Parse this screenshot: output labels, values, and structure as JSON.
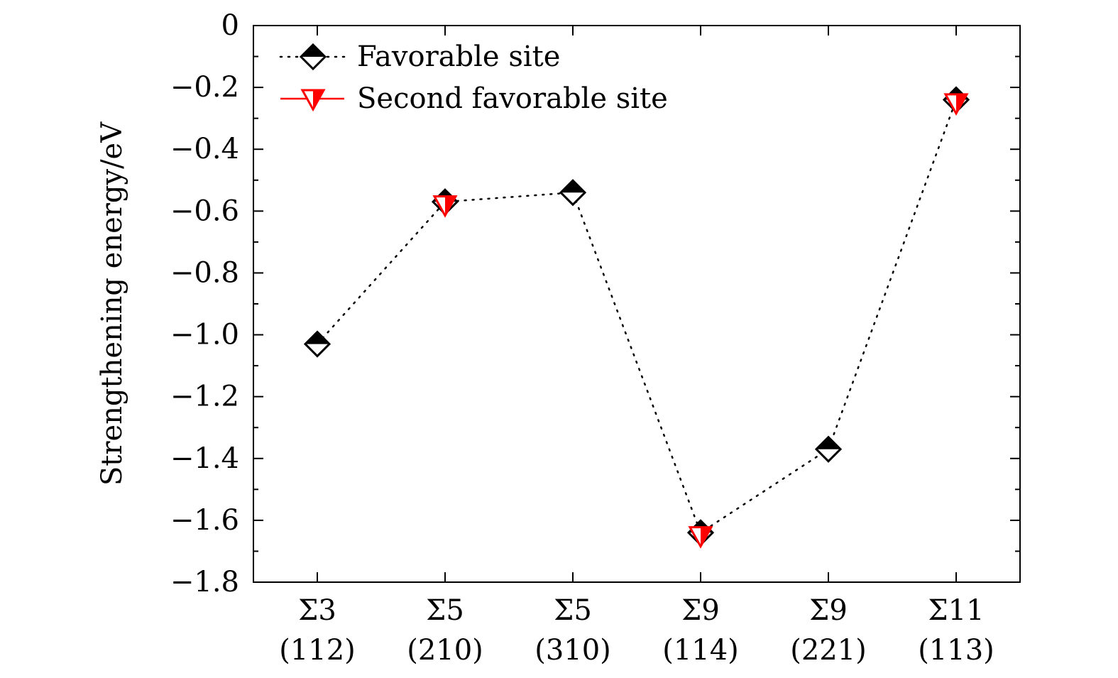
{
  "chart_data": {
    "type": "line",
    "categories": [
      {
        "top": "Σ3",
        "bottom": "(112)"
      },
      {
        "top": "Σ5",
        "bottom": "(210)"
      },
      {
        "top": "Σ5",
        "bottom": "(310)"
      },
      {
        "top": "Σ9",
        "bottom": "(114)"
      },
      {
        "top": "Σ9",
        "bottom": "(221)"
      },
      {
        "top": "Σ11",
        "bottom": "(113)"
      }
    ],
    "ylabel": "Strengthening energy/eV",
    "ylim": [
      -1.8,
      0
    ],
    "yticks": [
      0,
      -0.2,
      -0.4,
      -0.6,
      -0.8,
      -1.0,
      -1.2,
      -1.4,
      -1.6,
      -1.8
    ],
    "ytick_labels": [
      "0",
      "−0.2",
      "−0.4",
      "−0.6",
      "−0.8",
      "−1.0",
      "−1.2",
      "−1.4",
      "−1.6",
      "−1.8"
    ],
    "legend_position": "top-left",
    "grid": false,
    "series": [
      {
        "name": "Favorable site",
        "marker": "half-filled-diamond",
        "line": "dotted",
        "color": "#000000",
        "values": [
          -1.03,
          -0.57,
          -0.54,
          -1.64,
          -1.37,
          -0.24
        ]
      },
      {
        "name": "Second favorable site",
        "marker": "half-filled-down-triangle",
        "line": "none",
        "color": "#ff0000",
        "values": [
          null,
          -0.58,
          null,
          -1.65,
          null,
          -0.25
        ]
      }
    ]
  }
}
